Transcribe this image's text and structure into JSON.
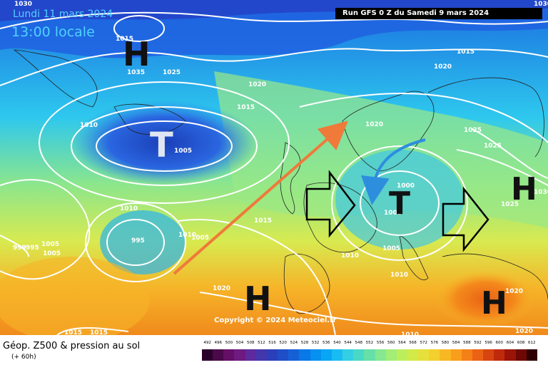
{
  "header": {
    "date": "Lundi 11 mars 2024",
    "time": "13:00 locale",
    "run": "Run GFS 0 Z du Samedi 9 mars 2024"
  },
  "footer": {
    "title": "Géop. Z500 & pression au sol",
    "subtitle": "(+ 60h)",
    "copyright": "Copyright © 2024 Meteociel.fr"
  },
  "pressure_centers": [
    {
      "type": "high",
      "label": "H"
    },
    {
      "type": "low",
      "label": "T"
    },
    {
      "type": "low",
      "label": "T"
    },
    {
      "type": "high",
      "label": "H"
    },
    {
      "type": "high",
      "label": "H"
    },
    {
      "type": "high",
      "label": "H"
    }
  ],
  "isobar_labels": [
    "1030",
    "1030",
    "1035",
    "1025",
    "1020",
    "1015",
    "1010",
    "1005",
    "1015",
    "1020",
    "1015",
    "1020",
    "1025",
    "1025",
    "1030",
    "1025",
    "1000",
    "1005",
    "1010",
    "1005",
    "1010",
    "1010",
    "1005",
    "995",
    "1010",
    "1005",
    "999",
    "995",
    "1005",
    "1015",
    "1020",
    "1015",
    "1015",
    "1010",
    "1020",
    "1020"
  ],
  "legend": {
    "ticks": [
      "492",
      "496",
      "500",
      "504",
      "508",
      "512",
      "516",
      "520",
      "524",
      "528",
      "532",
      "536",
      "540",
      "544",
      "548",
      "552",
      "556",
      "560",
      "564",
      "568",
      "572",
      "576",
      "580",
      "584",
      "588",
      "592",
      "596",
      "600",
      "604",
      "608",
      "612"
    ],
    "colors": [
      "#2a002a",
      "#4a0a4a",
      "#660f66",
      "#6e1a80",
      "#5e2a9e",
      "#4436ad",
      "#2c3fbb",
      "#1f4ec8",
      "#1660d6",
      "#0a78e6",
      "#0690f0",
      "#08a6f4",
      "#18bcf2",
      "#34cfe4",
      "#4ad8c6",
      "#66e0a8",
      "#86e890",
      "#a2ee76",
      "#bcee5c",
      "#d2ea48",
      "#e6e03c",
      "#f4d02e",
      "#f8b824",
      "#f89e1c",
      "#f48018",
      "#ea6214",
      "#d84410",
      "#c02a0c",
      "#9a1408",
      "#6e0804",
      "#300000"
    ]
  }
}
